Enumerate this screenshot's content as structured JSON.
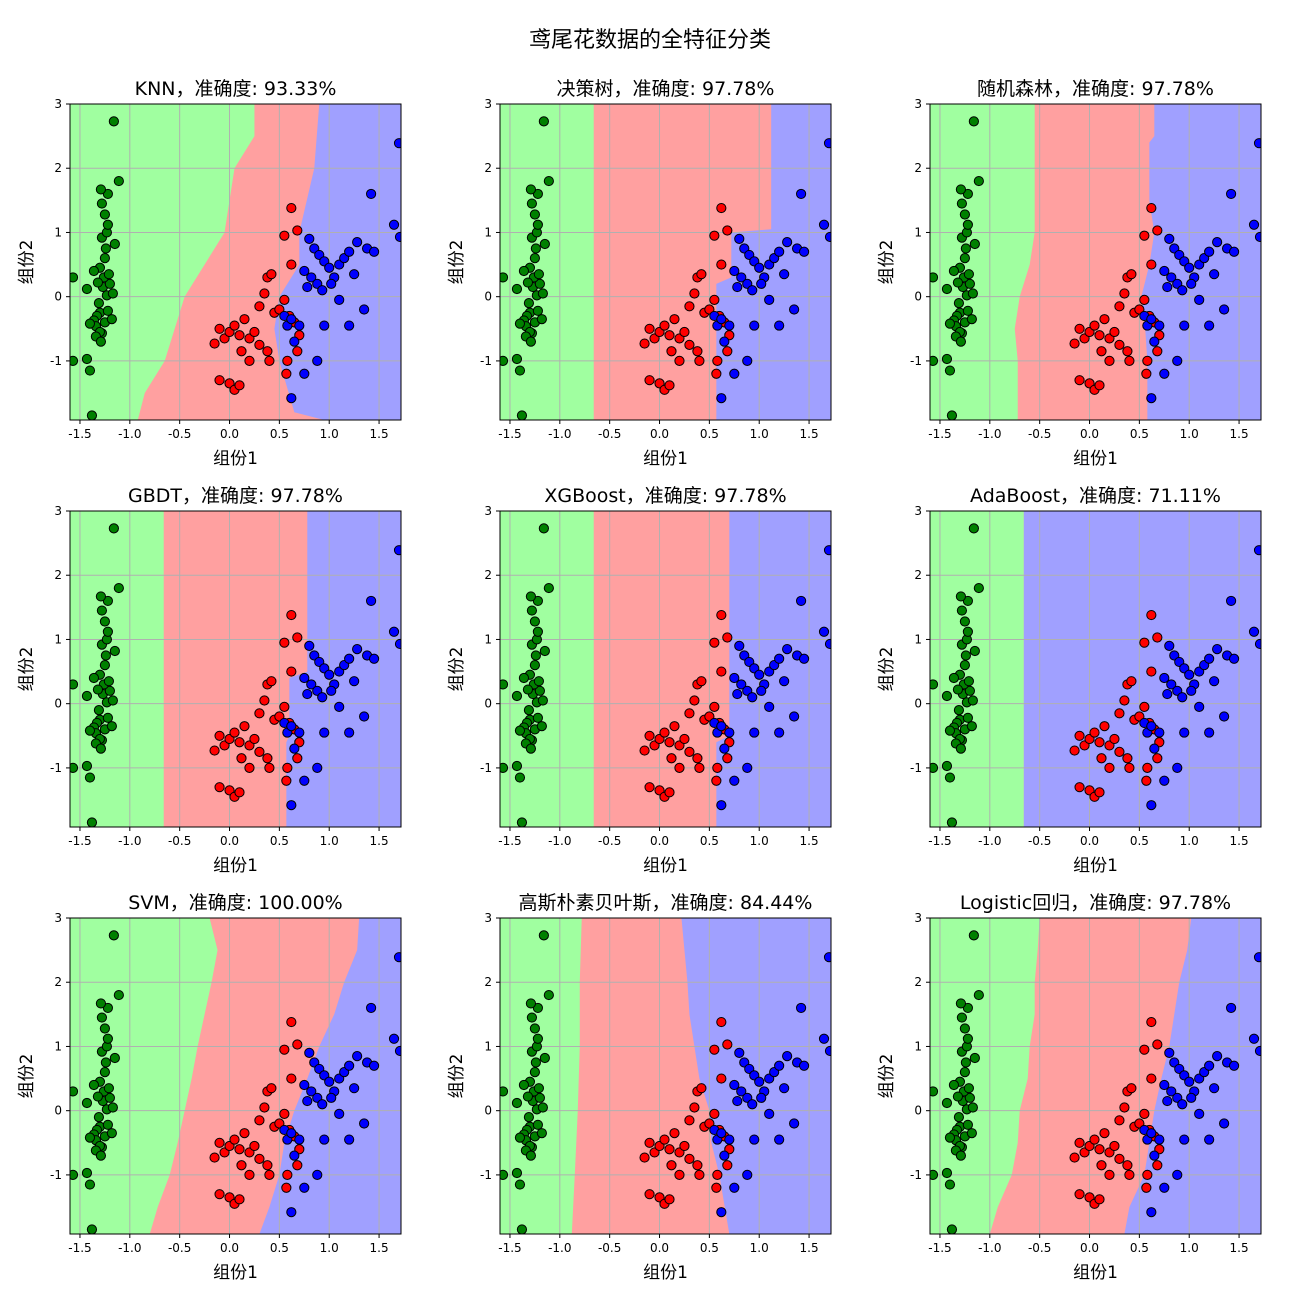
{
  "figure": {
    "suptitle": "鸢尾花数据的全特征分类",
    "colors": {
      "region": [
        "#a0ffa0",
        "#ffa0a0",
        "#a0a0ff"
      ],
      "point": [
        "#008000",
        "#ff0000",
        "#0000ff"
      ],
      "edge": "#000000",
      "grid": "#b0b0b0"
    }
  },
  "chart_data": [
    {
      "type": "scatter",
      "title": "KNN，准确度: 93.33%",
      "xlabel": "组份1",
      "ylabel": "组份2",
      "xlim": [
        -1.6,
        1.72
      ],
      "ylim": [
        -1.92,
        3.0
      ],
      "xticks": [
        "-1.5",
        "-1.0",
        "-0.5",
        "0.0",
        "0.5",
        "1.0",
        "1.5"
      ],
      "yticks": [
        "-1",
        "0",
        "1",
        "2",
        "3"
      ],
      "grid": true,
      "classes": [
        "green",
        "red",
        "blue"
      ],
      "boundaries": [
        [
          [
            -1.92,
            -0.92
          ],
          [
            -1.5,
            -0.85
          ],
          [
            -1.0,
            -0.65
          ],
          [
            -0.5,
            -0.55
          ],
          [
            0.0,
            -0.45
          ],
          [
            0.5,
            -0.25
          ],
          [
            1.0,
            -0.05
          ],
          [
            1.5,
            0.0
          ],
          [
            2.0,
            0.05
          ],
          [
            2.5,
            0.25
          ],
          [
            3.0,
            0.25
          ]
        ],
        [
          [
            -1.92,
            0.95
          ],
          [
            -1.8,
            0.65
          ],
          [
            -1.0,
            0.5
          ],
          [
            -0.5,
            0.45
          ],
          [
            0.0,
            0.5
          ],
          [
            0.5,
            0.7
          ],
          [
            1.0,
            0.7
          ],
          [
            2.0,
            0.85
          ],
          [
            3.0,
            0.9
          ]
        ]
      ]
    },
    {
      "type": "scatter",
      "title": "决策树，准确度: 97.78%",
      "xlabel": "组份1",
      "ylabel": "组份2",
      "xlim": [
        -1.6,
        1.72
      ],
      "ylim": [
        -1.92,
        3.0
      ],
      "xticks": [
        "-1.5",
        "-1.0",
        "-0.5",
        "0.0",
        "0.5",
        "1.0",
        "1.5"
      ],
      "yticks": [
        "-1",
        "0",
        "1",
        "2",
        "3"
      ],
      "grid": true,
      "classes": [
        "green",
        "red",
        "blue"
      ],
      "boundaries": [
        [
          [
            -1.92,
            -0.66
          ],
          [
            3.0,
            -0.66
          ]
        ],
        [
          [
            -1.92,
            0.57
          ],
          [
            0.2,
            0.57
          ],
          [
            0.3,
            0.72
          ],
          [
            1.0,
            0.72
          ],
          [
            1.05,
            1.12
          ],
          [
            3.0,
            1.12
          ]
        ]
      ]
    },
    {
      "type": "scatter",
      "title": "随机森林，准确度: 97.78%",
      "xlabel": "组份1",
      "ylabel": "组份2",
      "xlim": [
        -1.6,
        1.72
      ],
      "ylim": [
        -1.92,
        3.0
      ],
      "xticks": [
        "-1.5",
        "-1.0",
        "-0.5",
        "0.0",
        "0.5",
        "1.0",
        "1.5"
      ],
      "yticks": [
        "-1",
        "0",
        "1",
        "2",
        "3"
      ],
      "grid": true,
      "classes": [
        "green",
        "red",
        "blue"
      ],
      "boundaries": [
        [
          [
            -1.92,
            -0.72
          ],
          [
            -1.0,
            -0.72
          ],
          [
            -0.5,
            -0.75
          ],
          [
            0.0,
            -0.7
          ],
          [
            0.5,
            -0.6
          ],
          [
            1.0,
            -0.55
          ],
          [
            2.0,
            -0.55
          ],
          [
            3.0,
            -0.55
          ]
        ],
        [
          [
            -1.92,
            0.58
          ],
          [
            -1.0,
            0.58
          ],
          [
            -0.3,
            0.55
          ],
          [
            0.0,
            0.52
          ],
          [
            0.5,
            0.6
          ],
          [
            1.0,
            0.65
          ],
          [
            1.5,
            0.6
          ],
          [
            2.0,
            0.6
          ],
          [
            2.4,
            0.6
          ],
          [
            2.5,
            0.65
          ],
          [
            3.0,
            0.65
          ]
        ]
      ]
    },
    {
      "type": "scatter",
      "title": "GBDT，准确度: 97.78%",
      "xlabel": "组份1",
      "ylabel": "组份2",
      "xlim": [
        -1.6,
        1.72
      ],
      "ylim": [
        -1.92,
        3.0
      ],
      "xticks": [
        "-1.5",
        "-1.0",
        "-0.5",
        "0.0",
        "0.5",
        "1.0",
        "1.5"
      ],
      "yticks": [
        "-1",
        "0",
        "1",
        "2",
        "3"
      ],
      "grid": true,
      "classes": [
        "green",
        "red",
        "blue"
      ],
      "boundaries": [
        [
          [
            -1.92,
            -0.66
          ],
          [
            3.0,
            -0.66
          ]
        ],
        [
          [
            -1.92,
            0.57
          ],
          [
            -0.6,
            0.57
          ],
          [
            -0.5,
            0.6
          ],
          [
            0.4,
            0.6
          ],
          [
            0.5,
            0.78
          ],
          [
            3.0,
            0.78
          ]
        ]
      ]
    },
    {
      "type": "scatter",
      "title": "XGBoost，准确度: 97.78%",
      "xlabel": "组份1",
      "ylabel": "组份2",
      "xlim": [
        -1.6,
        1.72
      ],
      "ylim": [
        -1.92,
        3.0
      ],
      "xticks": [
        "-1.5",
        "-1.0",
        "-0.5",
        "0.0",
        "0.5",
        "1.0",
        "1.5"
      ],
      "yticks": [
        "-1",
        "0",
        "1",
        "2",
        "3"
      ],
      "grid": true,
      "classes": [
        "green",
        "red",
        "blue"
      ],
      "boundaries": [
        [
          [
            -1.92,
            -0.66
          ],
          [
            3.0,
            -0.66
          ]
        ],
        [
          [
            -1.92,
            0.57
          ],
          [
            -0.6,
            0.57
          ],
          [
            -0.5,
            0.7
          ],
          [
            3.0,
            0.7
          ]
        ]
      ]
    },
    {
      "type": "scatter",
      "title": "AdaBoost，准确度: 71.11%",
      "xlabel": "组份1",
      "ylabel": "组份2",
      "xlim": [
        -1.6,
        1.72
      ],
      "ylim": [
        -1.92,
        3.0
      ],
      "xticks": [
        "-1.5",
        "-1.0",
        "-0.5",
        "0.0",
        "0.5",
        "1.0",
        "1.5"
      ],
      "yticks": [
        "-1",
        "0",
        "1",
        "2",
        "3"
      ],
      "grid": true,
      "classes": [
        "green",
        "red",
        "blue"
      ],
      "boundaries": [
        [
          [
            -1.92,
            -0.66
          ],
          [
            3.0,
            -0.66
          ]
        ],
        [
          [
            -1.92,
            -0.66
          ],
          [
            3.0,
            -0.66
          ]
        ]
      ]
    },
    {
      "type": "scatter",
      "title": "SVM，准确度: 100.00%",
      "xlabel": "组份1",
      "ylabel": "组份2",
      "xlim": [
        -1.6,
        1.72
      ],
      "ylim": [
        -1.92,
        3.0
      ],
      "xticks": [
        "-1.5",
        "-1.0",
        "-0.5",
        "0.0",
        "0.5",
        "1.0",
        "1.5"
      ],
      "yticks": [
        "-1",
        "0",
        "1",
        "2",
        "3"
      ],
      "grid": true,
      "classes": [
        "green",
        "red",
        "blue"
      ],
      "boundaries": [
        [
          [
            -1.92,
            -0.8
          ],
          [
            -1.5,
            -0.72
          ],
          [
            -1.0,
            -0.6
          ],
          [
            -0.5,
            -0.52
          ],
          [
            0.0,
            -0.45
          ],
          [
            0.5,
            -0.38
          ],
          [
            1.0,
            -0.32
          ],
          [
            1.5,
            -0.25
          ],
          [
            2.0,
            -0.18
          ],
          [
            2.5,
            -0.12
          ],
          [
            3.0,
            -0.2
          ]
        ],
        [
          [
            -1.92,
            0.3
          ],
          [
            -1.5,
            0.4
          ],
          [
            -1.0,
            0.5
          ],
          [
            -0.5,
            0.55
          ],
          [
            0.0,
            0.65
          ],
          [
            0.5,
            0.78
          ],
          [
            1.0,
            0.9
          ],
          [
            1.5,
            1.05
          ],
          [
            2.0,
            1.15
          ],
          [
            2.5,
            1.28
          ],
          [
            3.0,
            1.3
          ]
        ]
      ]
    },
    {
      "type": "scatter",
      "title": "高斯朴素贝叶斯，准确度: 84.44%",
      "xlabel": "组份1",
      "ylabel": "组份2",
      "xlim": [
        -1.6,
        1.72
      ],
      "ylim": [
        -1.92,
        3.0
      ],
      "xticks": [
        "-1.5",
        "-1.0",
        "-0.5",
        "0.0",
        "0.5",
        "1.0",
        "1.5"
      ],
      "yticks": [
        "-1",
        "0",
        "1",
        "2",
        "3"
      ],
      "grid": true,
      "classes": [
        "green",
        "red",
        "blue"
      ],
      "boundaries": [
        [
          [
            -1.92,
            -0.88
          ],
          [
            -1.0,
            -0.85
          ],
          [
            0.0,
            -0.82
          ],
          [
            1.0,
            -0.8
          ],
          [
            2.0,
            -0.8
          ],
          [
            3.0,
            -0.78
          ]
        ],
        [
          [
            -1.92,
            0.7
          ],
          [
            -1.0,
            0.6
          ],
          [
            -0.5,
            0.52
          ],
          [
            0.0,
            0.5
          ],
          [
            0.5,
            0.4
          ],
          [
            1.0,
            0.35
          ],
          [
            1.5,
            0.3
          ],
          [
            2.0,
            0.28
          ],
          [
            2.5,
            0.25
          ],
          [
            3.0,
            0.22
          ]
        ]
      ]
    },
    {
      "type": "scatter",
      "title": "Logistic回归，准确度: 97.78%",
      "xlabel": "组份1",
      "ylabel": "组份2",
      "xlim": [
        -1.6,
        1.72
      ],
      "ylim": [
        -1.92,
        3.0
      ],
      "xticks": [
        "-1.5",
        "-1.0",
        "-0.5",
        "0.0",
        "0.5",
        "1.0",
        "1.5"
      ],
      "yticks": [
        "-1",
        "0",
        "1",
        "2",
        "3"
      ],
      "grid": true,
      "classes": [
        "green",
        "red",
        "blue"
      ],
      "boundaries": [
        [
          [
            -1.92,
            -1.0
          ],
          [
            -1.5,
            -0.92
          ],
          [
            -1.0,
            -0.78
          ],
          [
            -0.5,
            -0.72
          ],
          [
            0.0,
            -0.7
          ],
          [
            0.5,
            -0.62
          ],
          [
            1.0,
            -0.6
          ],
          [
            1.5,
            -0.55
          ],
          [
            2.0,
            -0.55
          ],
          [
            2.5,
            -0.52
          ],
          [
            3.0,
            -0.5
          ]
        ],
        [
          [
            -1.92,
            0.35
          ],
          [
            -1.5,
            0.4
          ],
          [
            -1.0,
            0.55
          ],
          [
            -0.5,
            0.6
          ],
          [
            0.0,
            0.65
          ],
          [
            0.5,
            0.72
          ],
          [
            1.0,
            0.8
          ],
          [
            1.5,
            0.85
          ],
          [
            2.0,
            0.9
          ],
          [
            2.5,
            0.98
          ],
          [
            3.0,
            1.02
          ]
        ]
      ]
    }
  ],
  "points": [
    {
      "x": -1.3,
      "y": -0.25,
      "c": 0
    },
    {
      "x": -1.33,
      "y": -0.3,
      "c": 0
    },
    {
      "x": -1.36,
      "y": -0.37,
      "c": 0
    },
    {
      "x": -1.34,
      "y": -0.46,
      "c": 0
    },
    {
      "x": -1.22,
      "y": -0.22,
      "c": 0
    },
    {
      "x": -1.25,
      "y": -0.4,
      "c": 0
    },
    {
      "x": -1.28,
      "y": -0.57,
      "c": 0
    },
    {
      "x": -1.4,
      "y": -0.42,
      "c": 0
    },
    {
      "x": -1.18,
      "y": -0.35,
      "c": 0
    },
    {
      "x": -1.31,
      "y": -0.1,
      "c": 0
    },
    {
      "x": -1.23,
      "y": 0.02,
      "c": 0
    },
    {
      "x": -1.27,
      "y": 0.15,
      "c": 0
    },
    {
      "x": -1.2,
      "y": 0.2,
      "c": 0
    },
    {
      "x": -1.26,
      "y": 0.3,
      "c": 0
    },
    {
      "x": -1.3,
      "y": 0.45,
      "c": 0
    },
    {
      "x": -1.21,
      "y": 0.35,
      "c": 0
    },
    {
      "x": -1.17,
      "y": 0.05,
      "c": 0
    },
    {
      "x": -1.25,
      "y": 0.6,
      "c": 0
    },
    {
      "x": -1.24,
      "y": 0.75,
      "c": 0
    },
    {
      "x": -1.28,
      "y": 0.92,
      "c": 0
    },
    {
      "x": -1.23,
      "y": 1.0,
      "c": 0
    },
    {
      "x": -1.15,
      "y": 0.82,
      "c": 0
    },
    {
      "x": -1.22,
      "y": 1.12,
      "c": 0
    },
    {
      "x": -1.25,
      "y": 1.28,
      "c": 0
    },
    {
      "x": -1.28,
      "y": 1.45,
      "c": 0
    },
    {
      "x": -1.22,
      "y": 1.6,
      "c": 0
    },
    {
      "x": -1.29,
      "y": 1.67,
      "c": 0
    },
    {
      "x": -1.11,
      "y": 1.8,
      "c": 0
    },
    {
      "x": -1.16,
      "y": 2.73,
      "c": 0
    },
    {
      "x": -1.57,
      "y": 0.3,
      "c": 0
    },
    {
      "x": -1.43,
      "y": 0.12,
      "c": 0
    },
    {
      "x": -1.43,
      "y": -0.97,
      "c": 0
    },
    {
      "x": -1.4,
      "y": -1.15,
      "c": 0
    },
    {
      "x": -1.57,
      "y": -1.0,
      "c": 0
    },
    {
      "x": -1.38,
      "y": -1.85,
      "c": 0
    },
    {
      "x": -1.3,
      "y": -0.55,
      "c": 0
    },
    {
      "x": -1.34,
      "y": -0.62,
      "c": 0
    },
    {
      "x": -1.36,
      "y": 0.4,
      "c": 0
    },
    {
      "x": -1.32,
      "y": 0.22,
      "c": 0
    },
    {
      "x": -1.29,
      "y": -0.7,
      "c": 0
    },
    {
      "x": -0.15,
      "y": -0.73,
      "c": 1
    },
    {
      "x": -0.1,
      "y": -0.5,
      "c": 1
    },
    {
      "x": -0.05,
      "y": -0.65,
      "c": 1
    },
    {
      "x": 0.0,
      "y": -0.55,
      "c": 1
    },
    {
      "x": 0.05,
      "y": -0.45,
      "c": 1
    },
    {
      "x": 0.1,
      "y": -0.6,
      "c": 1
    },
    {
      "x": 0.12,
      "y": -0.85,
      "c": 1
    },
    {
      "x": 0.15,
      "y": -0.35,
      "c": 1
    },
    {
      "x": 0.2,
      "y": -0.65,
      "c": 1
    },
    {
      "x": 0.25,
      "y": -0.55,
      "c": 1
    },
    {
      "x": 0.3,
      "y": -0.15,
      "c": 1
    },
    {
      "x": 0.35,
      "y": 0.05,
      "c": 1
    },
    {
      "x": 0.38,
      "y": 0.3,
      "c": 1
    },
    {
      "x": 0.42,
      "y": 0.35,
      "c": 1
    },
    {
      "x": 0.45,
      "y": -0.25,
      "c": 1
    },
    {
      "x": 0.5,
      "y": -0.2,
      "c": 1
    },
    {
      "x": 0.55,
      "y": -0.05,
      "c": 1
    },
    {
      "x": 0.62,
      "y": 1.38,
      "c": 1
    },
    {
      "x": 0.68,
      "y": 1.03,
      "c": 1
    },
    {
      "x": 0.55,
      "y": 0.95,
      "c": 1
    },
    {
      "x": 0.62,
      "y": 0.5,
      "c": 1
    },
    {
      "x": 0.6,
      "y": -0.3,
      "c": 1
    },
    {
      "x": 0.4,
      "y": -1.0,
      "c": 1
    },
    {
      "x": 0.0,
      "y": -1.35,
      "c": 1
    },
    {
      "x": 0.05,
      "y": -1.45,
      "c": 1
    },
    {
      "x": 0.1,
      "y": -1.38,
      "c": 1
    },
    {
      "x": -0.1,
      "y": -1.3,
      "c": 1
    },
    {
      "x": 0.2,
      "y": -1.0,
      "c": 1
    },
    {
      "x": 0.3,
      "y": -0.75,
      "c": 1
    },
    {
      "x": 0.38,
      "y": -0.85,
      "c": 1
    },
    {
      "x": 0.65,
      "y": -0.4,
      "c": 1
    },
    {
      "x": 0.7,
      "y": -0.6,
      "c": 1
    },
    {
      "x": 0.68,
      "y": -0.85,
      "c": 1
    },
    {
      "x": 0.58,
      "y": -1.0,
      "c": 1
    },
    {
      "x": 0.57,
      "y": -1.2,
      "c": 1
    },
    {
      "x": 0.8,
      "y": 0.9,
      "c": 2
    },
    {
      "x": 0.85,
      "y": 0.75,
      "c": 2
    },
    {
      "x": 0.9,
      "y": 0.65,
      "c": 2
    },
    {
      "x": 0.95,
      "y": 0.55,
      "c": 2
    },
    {
      "x": 1.0,
      "y": 0.45,
      "c": 2
    },
    {
      "x": 0.75,
      "y": 0.4,
      "c": 2
    },
    {
      "x": 0.82,
      "y": 0.3,
      "c": 2
    },
    {
      "x": 0.88,
      "y": 0.2,
      "c": 2
    },
    {
      "x": 0.93,
      "y": 0.1,
      "c": 2
    },
    {
      "x": 1.05,
      "y": 0.3,
      "c": 2
    },
    {
      "x": 1.1,
      "y": 0.5,
      "c": 2
    },
    {
      "x": 1.15,
      "y": 0.6,
      "c": 2
    },
    {
      "x": 1.2,
      "y": 0.7,
      "c": 2
    },
    {
      "x": 1.28,
      "y": 0.85,
      "c": 2
    },
    {
      "x": 1.38,
      "y": 0.75,
      "c": 2
    },
    {
      "x": 1.42,
      "y": 1.6,
      "c": 2
    },
    {
      "x": 1.65,
      "y": 1.12,
      "c": 2
    },
    {
      "x": 1.71,
      "y": 0.93,
      "c": 2
    },
    {
      "x": 1.7,
      "y": 2.39,
      "c": 2
    },
    {
      "x": 1.1,
      "y": -0.05,
      "c": 2
    },
    {
      "x": 1.2,
      "y": -0.45,
      "c": 2
    },
    {
      "x": 0.95,
      "y": -0.45,
      "c": 2
    },
    {
      "x": 0.88,
      "y": -1.0,
      "c": 2
    },
    {
      "x": 0.62,
      "y": -1.58,
      "c": 2
    },
    {
      "x": 0.58,
      "y": -0.45,
      "c": 2
    },
    {
      "x": 0.55,
      "y": -0.3,
      "c": 2
    },
    {
      "x": 0.62,
      "y": -0.35,
      "c": 2
    },
    {
      "x": 0.7,
      "y": -0.45,
      "c": 2
    },
    {
      "x": 0.65,
      "y": -0.7,
      "c": 2
    },
    {
      "x": 0.78,
      "y": 0.15,
      "c": 2
    },
    {
      "x": 1.02,
      "y": 0.2,
      "c": 2
    },
    {
      "x": 1.25,
      "y": 0.35,
      "c": 2
    },
    {
      "x": 1.35,
      "y": -0.2,
      "c": 2
    },
    {
      "x": 1.45,
      "y": 0.7,
      "c": 2
    },
    {
      "x": 0.75,
      "y": -1.2,
      "c": 2
    }
  ]
}
